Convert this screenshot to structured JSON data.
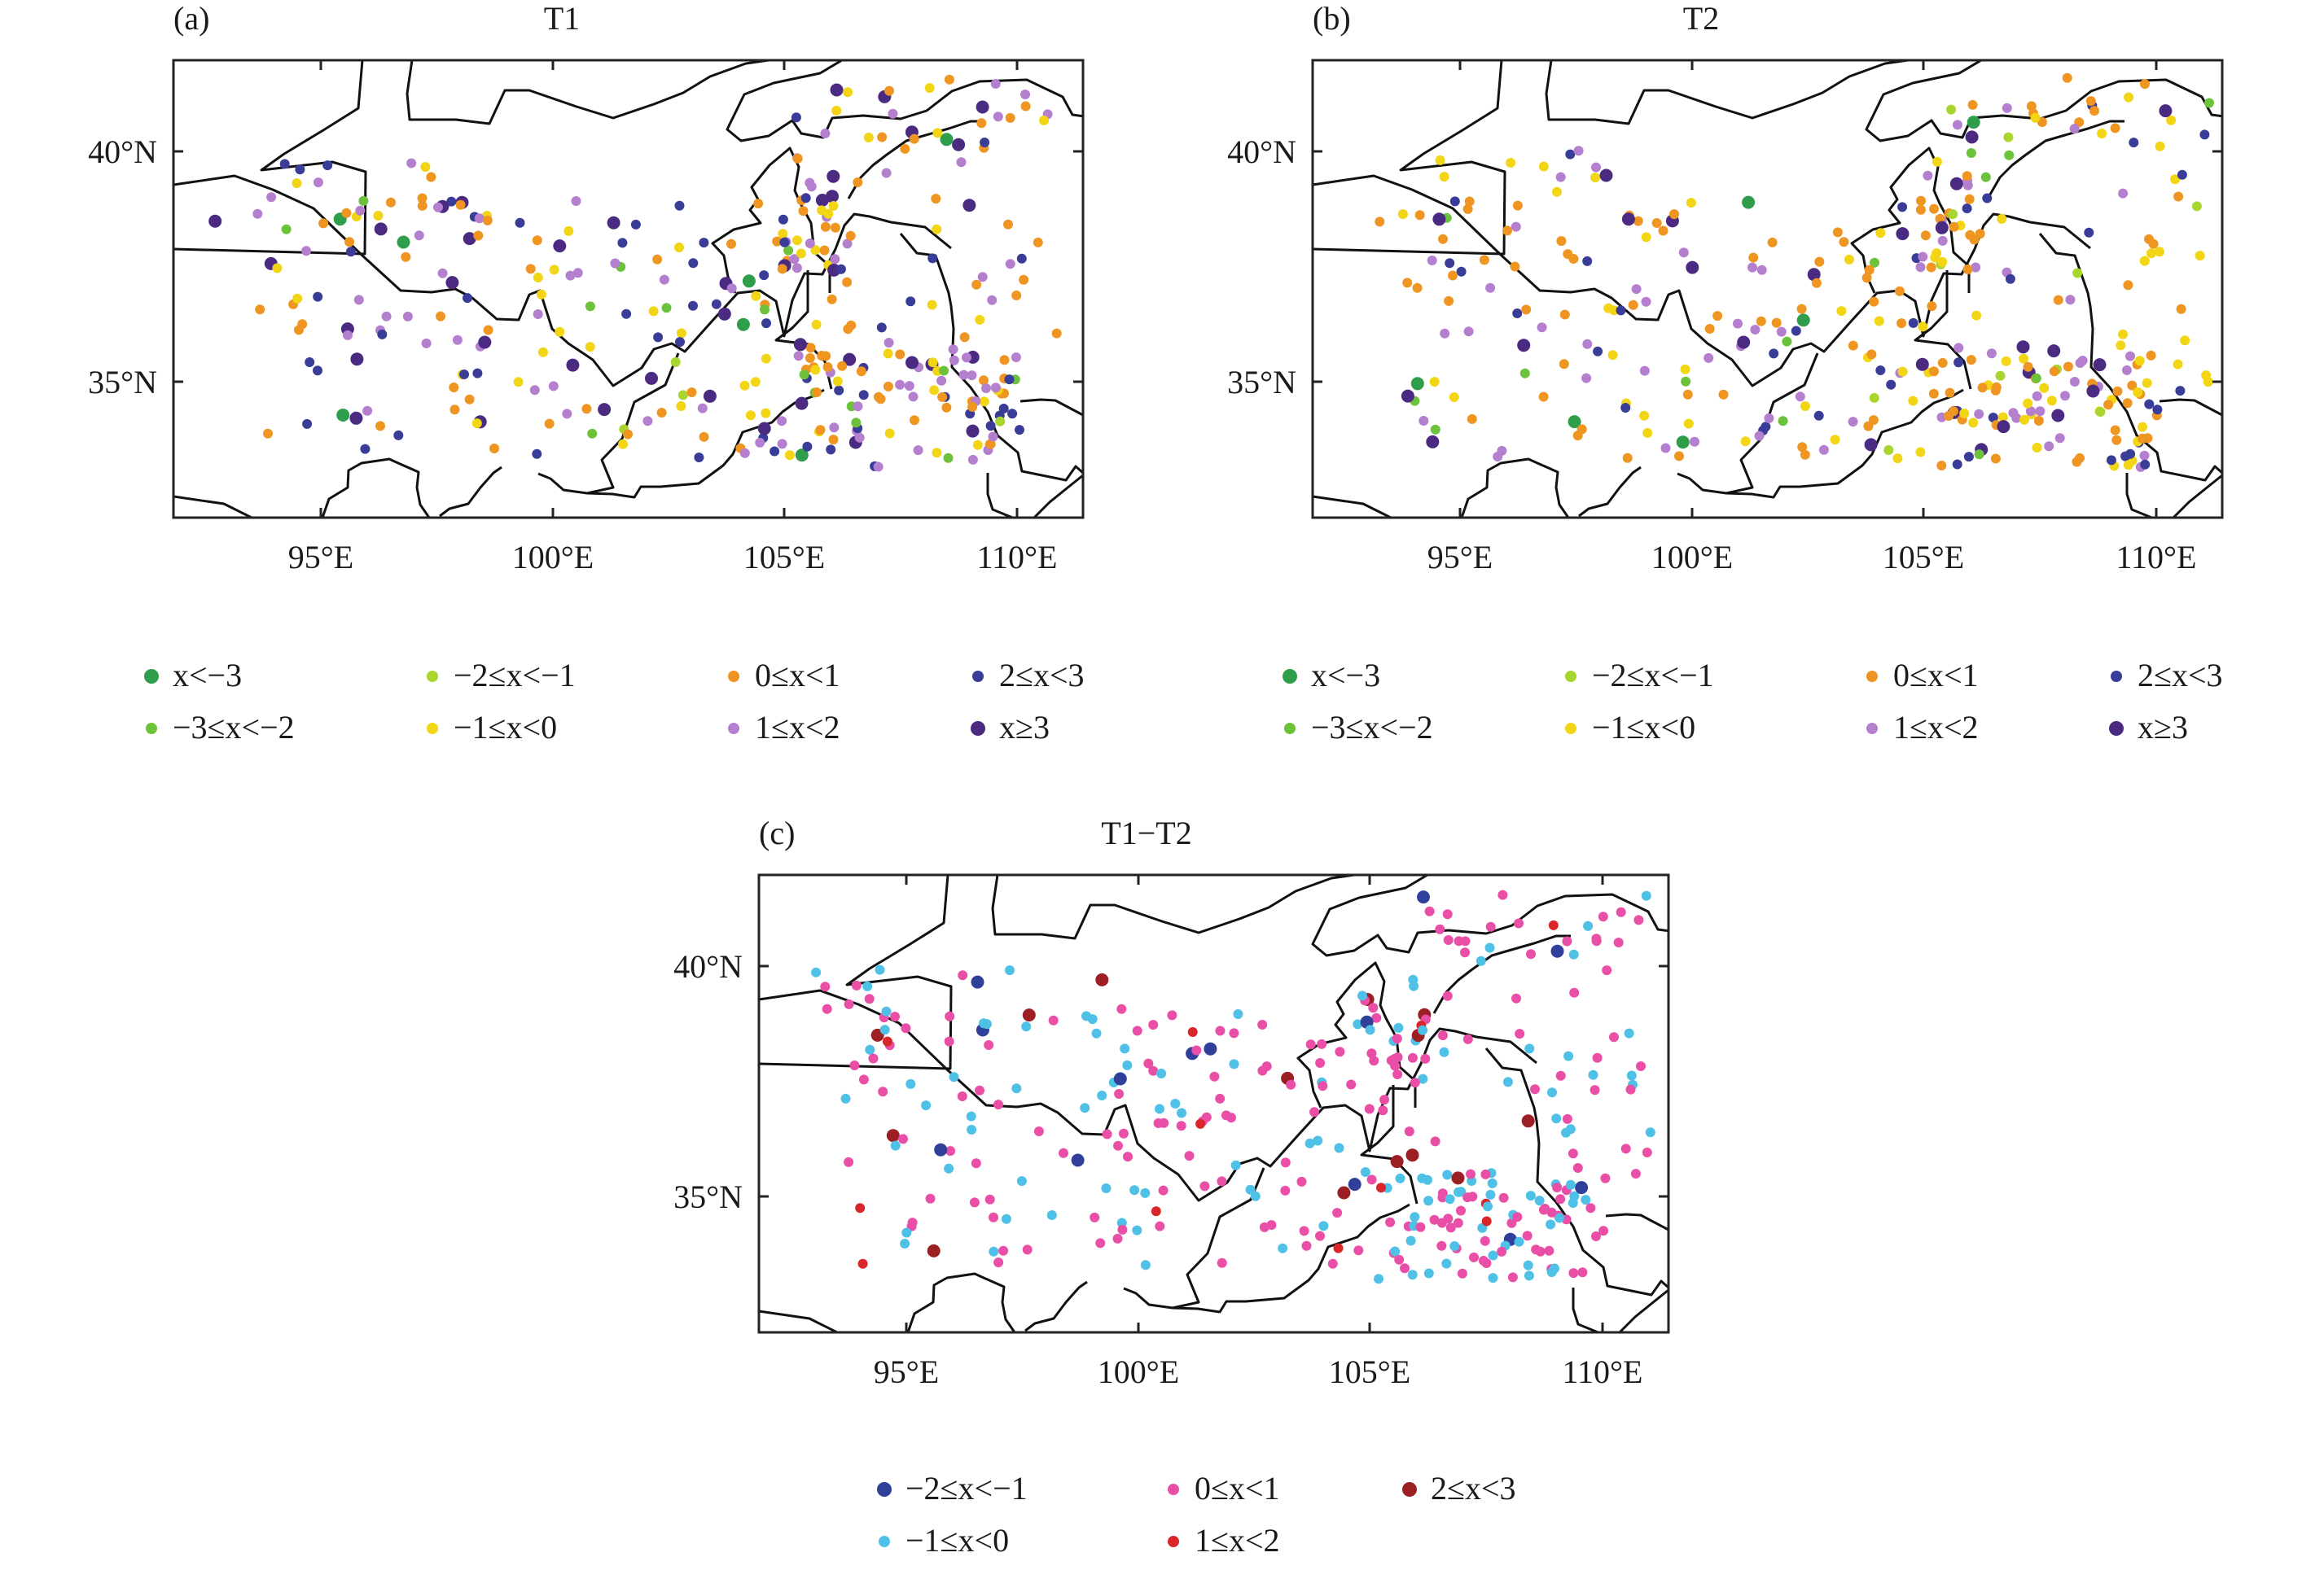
{
  "panels": [
    {
      "id": "a",
      "tag": "(a)",
      "title": "T1",
      "lon_labels": [
        "95°E",
        "100°E",
        "105°E",
        "110°E"
      ],
      "lat_labels": [
        "40°N",
        "35°N"
      ],
      "legend": [
        {
          "label": "x<−3",
          "color": "#2e9e4a"
        },
        {
          "label": "−3≤x<−2",
          "color": "#6cc23a"
        },
        {
          "label": "−2≤x<−1",
          "color": "#a8d52e"
        },
        {
          "label": "−1≤x<0",
          "color": "#f2d514"
        },
        {
          "label": "0≤x<1",
          "color": "#ef9521"
        },
        {
          "label": "1≤x<2",
          "color": "#b57fcf"
        },
        {
          "label": "2≤x<3",
          "color": "#3a3d97"
        },
        {
          "label": "x≥3",
          "color": "#4b2a82"
        }
      ]
    },
    {
      "id": "b",
      "tag": "(b)",
      "title": "T2",
      "lon_labels": [
        "95°E",
        "100°E",
        "105°E",
        "110°E"
      ],
      "lat_labels": [
        "40°N",
        "35°N"
      ],
      "legend": [
        {
          "label": "x<−3",
          "color": "#2e9e4a"
        },
        {
          "label": "−3≤x<−2",
          "color": "#6cc23a"
        },
        {
          "label": "−2≤x<−1",
          "color": "#a8d52e"
        },
        {
          "label": "−1≤x<0",
          "color": "#f2d514"
        },
        {
          "label": "0≤x<1",
          "color": "#ef9521"
        },
        {
          "label": "1≤x<2",
          "color": "#b57fcf"
        },
        {
          "label": "2≤x<3",
          "color": "#3a3d97"
        },
        {
          "label": "x≥3",
          "color": "#4b2a82"
        }
      ]
    },
    {
      "id": "c",
      "tag": "(c)",
      "title": "T1−T2",
      "lon_labels": [
        "95°E",
        "100°E",
        "105°E",
        "110°E"
      ],
      "lat_labels": [
        "40°N",
        "35°N"
      ],
      "legend": [
        {
          "label": "−2≤x<−1",
          "color": "#2f3f9a"
        },
        {
          "label": "−1≤x<0",
          "color": "#4fc0e6"
        },
        {
          "label": "0≤x<1",
          "color": "#ea4fa8"
        },
        {
          "label": "1≤x<2",
          "color": "#d8262b"
        },
        {
          "label": "2≤x<3",
          "color": "#9c1f24"
        }
      ]
    }
  ]
}
